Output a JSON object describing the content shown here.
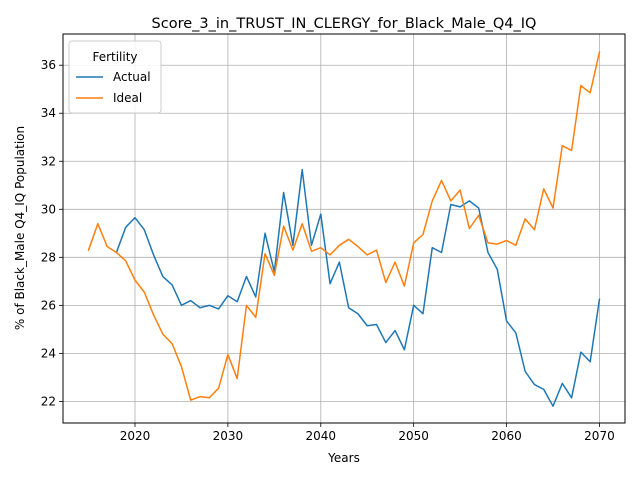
{
  "chart_data": {
    "type": "line",
    "title": "Score_3_in_TRUST_IN_CLERGY_for_Black_Male_Q4_IQ",
    "xlabel": "Years",
    "ylabel": "% of Black_Male Q4_IQ Population",
    "xlim": [
      2012.25,
      2072.75
    ],
    "ylim": [
      21.1,
      37.3
    ],
    "xticks": [
      2020,
      2030,
      2040,
      2050,
      2060,
      2070
    ],
    "yticks": [
      22,
      24,
      26,
      28,
      30,
      32,
      34,
      36
    ],
    "grid": true,
    "legend": {
      "title": "Fertility",
      "placement": "top-left"
    },
    "series": [
      {
        "name": "Actual",
        "color": "#1f77b4",
        "x": [
          2018,
          2019,
          2020,
          2021,
          2022,
          2023,
          2024,
          2025,
          2026,
          2027,
          2028,
          2029,
          2030,
          2031,
          2032,
          2033,
          2034,
          2035,
          2036,
          2037,
          2038,
          2039,
          2040,
          2041,
          2042,
          2043,
          2044,
          2045,
          2046,
          2047,
          2048,
          2049,
          2050,
          2051,
          2052,
          2053,
          2054,
          2055,
          2056,
          2057,
          2058,
          2059,
          2060,
          2061,
          2062,
          2063,
          2064,
          2065,
          2066,
          2067,
          2068,
          2069,
          2070
        ],
        "values": [
          28.2,
          29.25,
          29.65,
          29.15,
          28.1,
          27.2,
          26.85,
          26.0,
          26.2,
          25.9,
          26.0,
          25.85,
          26.4,
          26.15,
          27.2,
          26.35,
          29.0,
          27.4,
          30.7,
          28.5,
          31.65,
          28.5,
          29.8,
          26.9,
          27.8,
          25.9,
          25.65,
          25.15,
          25.2,
          24.45,
          24.95,
          24.15,
          26.0,
          25.65,
          28.4,
          28.2,
          30.2,
          30.1,
          30.35,
          30.05,
          28.2,
          27.5,
          25.35,
          24.85,
          23.25,
          22.7,
          22.5,
          21.8,
          22.75,
          22.15,
          24.05,
          23.65,
          26.25
        ]
      },
      {
        "name": "Ideal",
        "color": "#ff7f0e",
        "x": [
          2015,
          2016,
          2017,
          2018,
          2019,
          2020,
          2021,
          2022,
          2023,
          2024,
          2025,
          2026,
          2027,
          2028,
          2029,
          2030,
          2031,
          2032,
          2033,
          2034,
          2035,
          2036,
          2037,
          2038,
          2039,
          2040,
          2041,
          2042,
          2043,
          2044,
          2045,
          2046,
          2047,
          2048,
          2049,
          2050,
          2051,
          2052,
          2053,
          2054,
          2055,
          2056,
          2057,
          2058,
          2059,
          2060,
          2061,
          2062,
          2063,
          2064,
          2065,
          2066,
          2067,
          2068,
          2069,
          2070
        ],
        "values": [
          28.3,
          29.4,
          28.45,
          28.2,
          27.85,
          27.05,
          26.55,
          25.6,
          24.8,
          24.4,
          23.45,
          22.05,
          22.2,
          22.15,
          22.55,
          23.95,
          22.95,
          26.0,
          25.5,
          28.15,
          27.25,
          29.3,
          28.3,
          29.4,
          28.25,
          28.4,
          28.1,
          28.5,
          28.75,
          28.45,
          28.1,
          28.3,
          26.95,
          27.8,
          26.8,
          28.6,
          28.95,
          30.35,
          31.2,
          30.35,
          30.8,
          29.2,
          29.75,
          28.6,
          28.55,
          28.7,
          28.5,
          29.6,
          29.15,
          30.85,
          30.05,
          32.65,
          32.45,
          35.15,
          34.85,
          36.55
        ]
      }
    ]
  }
}
